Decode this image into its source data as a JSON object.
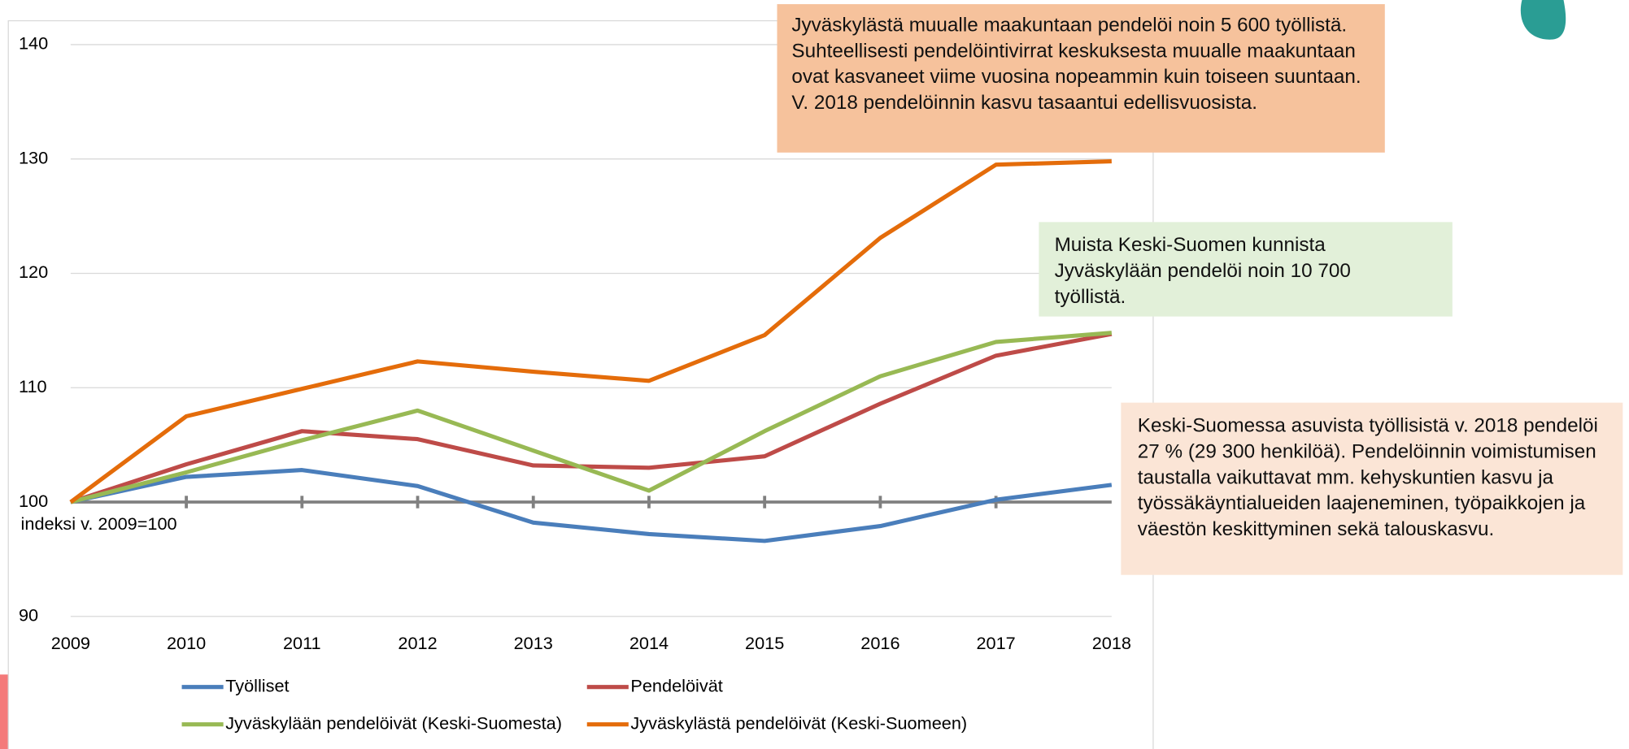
{
  "chart_data": {
    "type": "line",
    "categories": [
      "2009",
      "2010",
      "2011",
      "2012",
      "2013",
      "2014",
      "2015",
      "2016",
      "2017",
      "2018"
    ],
    "series": [
      {
        "name": "Työlliset",
        "color": "#4a7ebb",
        "values": [
          100,
          102.2,
          102.8,
          101.4,
          98.2,
          97.2,
          96.6,
          97.9,
          100.2,
          101.5
        ]
      },
      {
        "name": "Pendelöivät",
        "color": "#be4b48",
        "values": [
          100,
          103.3,
          106.2,
          105.5,
          103.2,
          103.0,
          104.0,
          108.6,
          112.8,
          114.7
        ]
      },
      {
        "name": "Jyväskylään pendelöivät (Keski-Suomesta)",
        "color": "#98b954",
        "values": [
          100,
          102.6,
          105.4,
          108.0,
          104.5,
          101.0,
          106.2,
          111.0,
          114.0,
          114.8
        ]
      },
      {
        "name": "Jyväskylästä pendelöivät (Keski-Suomeen)",
        "color": "#e46c0a",
        "values": [
          100,
          107.5,
          109.9,
          112.3,
          111.4,
          110.6,
          114.6,
          123.1,
          129.5,
          129.8
        ]
      }
    ],
    "ylim": [
      90,
      140
    ],
    "yticks": [
      90,
      100,
      110,
      120,
      130,
      140
    ],
    "grid": true,
    "legend": "bottom",
    "axis_note": "indeksi v. 2009=100",
    "annotations": [
      {
        "text": "Jyväskylästä muualle maakuntaan pendelöi noin 5 600 työllistä. Suhteellisesti pendelöintivirrat keskuksesta muualle maakuntaan ovat kasvaneet viime vuosina nopeammin kuin toiseen suuntaan. V. 2018 pendelöinnin kasvu tasaantui edellisvuosista.",
        "color": "#f6c29c"
      },
      {
        "text": "Muista Keski-Suomen kunnista Jyväskylään pendelöi noin 10 700 työllistä.",
        "color": "#e2f0d9"
      },
      {
        "text": "Keski-Suomessa asuvista työllisistä v. 2018 pendelöi 27 % (29 300 henkilöä). Pendelöinnin voimistumisen taustalla vaikuttavat mm. kehyskuntien kasvu ja työssäkäyntialueiden laajeneminen, työpaikkojen ja väestön keskittyminen sekä talouskasvu.",
        "color": "#fbe5d6"
      }
    ]
  }
}
